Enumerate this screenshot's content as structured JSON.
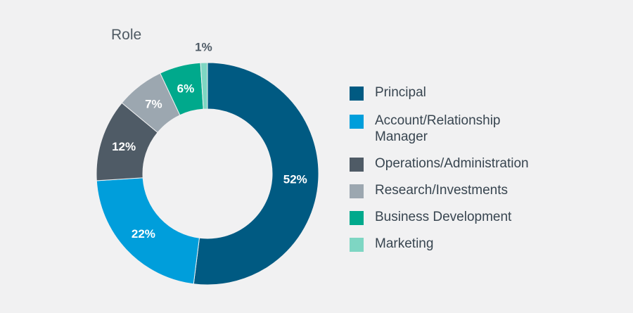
{
  "chart_data": {
    "type": "pie",
    "donut": true,
    "title": "Role",
    "slices": [
      {
        "label": "Principal",
        "value": 52,
        "display": "52%",
        "color": "#005a82"
      },
      {
        "label": "Account/Relationship Manager",
        "value": 22,
        "display": "22%",
        "color": "#009edb"
      },
      {
        "label": "Operations/Administration",
        "value": 12,
        "display": "12%",
        "color": "#4f5b66"
      },
      {
        "label": "Research/Investments",
        "value": 7,
        "display": "7%",
        "color": "#9ca7b0"
      },
      {
        "label": "Business Development",
        "value": 6,
        "display": "6%",
        "color": "#00a98c"
      },
      {
        "label": "Marketing",
        "value": 1,
        "display": "1%",
        "color": "#7ed6c3"
      }
    ],
    "legend_position": "right"
  }
}
